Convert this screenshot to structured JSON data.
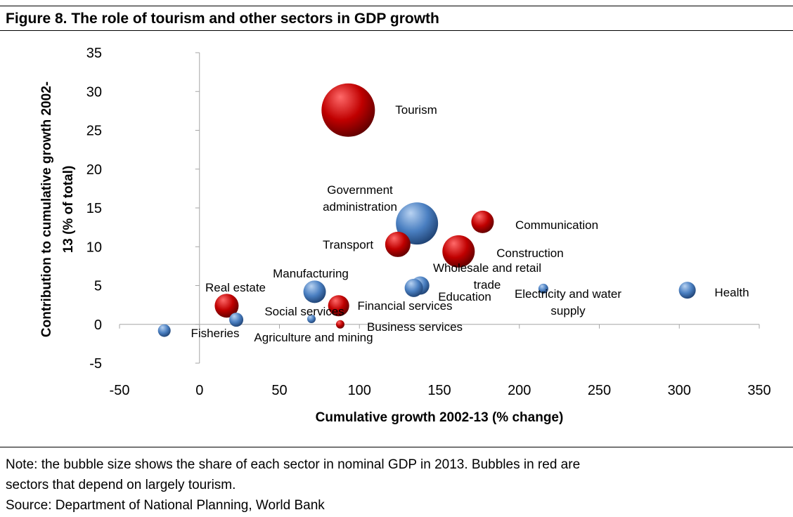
{
  "figure_title": "Figure 8. The role of tourism and other sectors in GDP growth",
  "note_lines": [
    "Note: the bubble size shows the share of each sector in nominal GDP in 2013. Bubbles in red are",
    "sectors that depend on largely tourism."
  ],
  "source": "Source: Department of National Planning, World Bank",
  "colors": {
    "tourism": "#c00000",
    "other": "#4a7fc1",
    "axis": "#a6a6a6"
  },
  "chart_data": {
    "type": "bubble",
    "title": "",
    "xlabel": "Cumulative growth 2002-13 (% change)",
    "ylabel_lines": [
      "Contribution to cumulative growth 2002-",
      "13 (% of total)"
    ],
    "xlim": [
      -50,
      350
    ],
    "ylim": [
      -5,
      35
    ],
    "x_ticks": [
      -50,
      0,
      50,
      100,
      150,
      200,
      250,
      300,
      350
    ],
    "y_ticks": [
      -5,
      0,
      5,
      10,
      15,
      20,
      25,
      30,
      35
    ],
    "size_note": "bubble size = share of sector in nominal GDP in 2013",
    "points": [
      {
        "label": [
          "Tourism"
        ],
        "x": 93,
        "y": 27.6,
        "size": 38,
        "group": "tourism"
      },
      {
        "label": [
          "Government",
          "administration"
        ],
        "x": 136,
        "y": 13,
        "size": 30,
        "group": "other"
      },
      {
        "label": [
          "Communication"
        ],
        "x": 177,
        "y": 13.2,
        "size": 16,
        "group": "tourism"
      },
      {
        "label": [
          "Transport"
        ],
        "x": 124,
        "y": 10.3,
        "size": 18,
        "group": "tourism"
      },
      {
        "label": [
          "Construction"
        ],
        "x": 162,
        "y": 9.4,
        "size": 23,
        "group": "tourism"
      },
      {
        "label": [
          "Wholesale and retail",
          "trade"
        ],
        "x": 138,
        "y": 5,
        "size": 13,
        "group": "other"
      },
      {
        "label": [
          "Education"
        ],
        "x": 134,
        "y": 4.7,
        "size": 13,
        "group": "other"
      },
      {
        "label": [
          "Electricity and water",
          "supply"
        ],
        "x": 215,
        "y": 4.6,
        "size": 7,
        "group": "other"
      },
      {
        "label": [
          "Health"
        ],
        "x": 305,
        "y": 4.4,
        "size": 12,
        "group": "other"
      },
      {
        "label": [
          "Manufacturing"
        ],
        "x": 72,
        "y": 4.2,
        "size": 16,
        "group": "other"
      },
      {
        "label": [
          "Real estate"
        ],
        "x": 17,
        "y": 2.4,
        "size": 17,
        "group": "tourism"
      },
      {
        "label": [
          "Financial services"
        ],
        "x": 87,
        "y": 2.4,
        "size": 15,
        "group": "tourism"
      },
      {
        "label": [
          "Social services"
        ],
        "x": 70,
        "y": 0.7,
        "size": 6,
        "group": "other"
      },
      {
        "label": [
          "Agriculture and mining"
        ],
        "x": 23,
        "y": 0.6,
        "size": 10,
        "group": "other"
      },
      {
        "label": [
          "Business services"
        ],
        "x": 88,
        "y": 0,
        "size": 6,
        "group": "tourism"
      },
      {
        "label": [
          "Fisheries"
        ],
        "x": -22,
        "y": -0.8,
        "size": 9,
        "group": "other"
      }
    ]
  }
}
